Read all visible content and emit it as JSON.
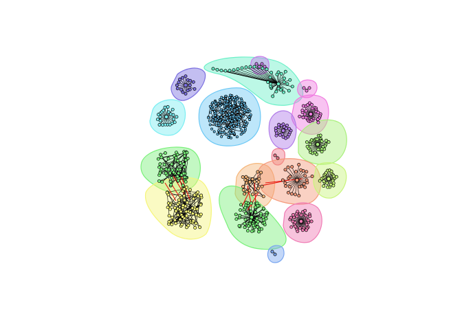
{
  "figure": {
    "type": "network-community-plot",
    "background": "#ffffff",
    "vertex_stroke": "#000000",
    "edge_color": "#000000",
    "cross_edge_color": "#e8140c"
  },
  "communities": [
    {
      "id": "c01",
      "fill": "#7b6fe0",
      "vertices": 16,
      "shape": "star"
    },
    {
      "id": "c02",
      "fill": "#6bf0c8",
      "vertices": 38,
      "shape": "chain-star"
    },
    {
      "id": "c03",
      "fill": "#c77bea",
      "vertices": 4,
      "shape": "small"
    },
    {
      "id": "c04",
      "fill": "#f07be0",
      "vertices": 3,
      "shape": "small"
    },
    {
      "id": "c05",
      "fill": "#7aeef2",
      "vertices": 22,
      "shape": "star"
    },
    {
      "id": "c06",
      "fill": "#6cc8f5",
      "vertices": 240,
      "shape": "dense"
    },
    {
      "id": "c07",
      "fill": "#f07be0",
      "vertices": 30,
      "shape": "star"
    },
    {
      "id": "c08",
      "fill": "#b07be8",
      "vertices": 20,
      "shape": "star"
    },
    {
      "id": "c09",
      "fill": "#a8f07a",
      "vertices": 30,
      "shape": "star"
    },
    {
      "id": "c10",
      "fill": "#f07a8e",
      "vertices": 2,
      "shape": "small"
    },
    {
      "id": "c11",
      "fill": "#7af07a",
      "vertices": 60,
      "shape": "mesh"
    },
    {
      "id": "c12",
      "fill": "#f5f57a",
      "vertices": 80,
      "shape": "mesh"
    },
    {
      "id": "c13",
      "fill": "#f5b67a",
      "vertices": 24,
      "shape": "mesh"
    },
    {
      "id": "c14",
      "fill": "#f5997a",
      "vertices": 26,
      "shape": "star"
    },
    {
      "id": "c15",
      "fill": "#c8f57a",
      "vertices": 26,
      "shape": "star"
    },
    {
      "id": "c16",
      "fill": "#7af07a",
      "vertices": 70,
      "shape": "dense-star"
    },
    {
      "id": "c17",
      "fill": "#f07bb4",
      "vertices": 36,
      "shape": "star"
    },
    {
      "id": "c18",
      "fill": "#7aa6f0",
      "vertices": 2,
      "shape": "small"
    }
  ]
}
